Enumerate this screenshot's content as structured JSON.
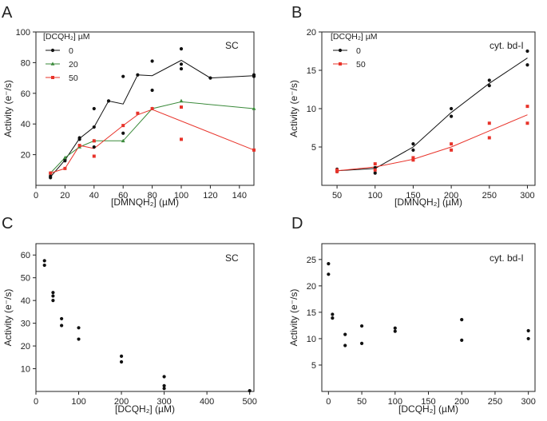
{
  "panels": {
    "A": {
      "letter": "A",
      "tag": "SC"
    },
    "B": {
      "letter": "B",
      "tag": "cyt. bd-I"
    },
    "C": {
      "letter": "C",
      "tag": "SC"
    },
    "D": {
      "letter": "D",
      "tag": "cyt. bd-I"
    }
  },
  "colors": {
    "black": "#111111",
    "green": "#3a8a3a",
    "red": "#e8332a"
  },
  "chart_data": [
    {
      "id": "A",
      "type": "scatter",
      "xlabel": "[DMNQH₂] (µM)",
      "ylabel": "Activity (e⁻/s)",
      "xlim": [
        0,
        150
      ],
      "ylim": [
        0,
        100
      ],
      "xticks": [
        0,
        20,
        40,
        60,
        80,
        100,
        120,
        140
      ],
      "yticks": [
        20,
        40,
        60,
        80,
        100
      ],
      "legend_title": "[DCQH₂] µM",
      "legend_position": "top-left",
      "series": [
        {
          "name": "0",
          "color": "#111111",
          "marker": "circle",
          "points": [
            [
              10,
              5
            ],
            [
              10,
              6
            ],
            [
              20,
              16
            ],
            [
              20,
              17
            ],
            [
              30,
              30
            ],
            [
              30,
              31
            ],
            [
              40,
              25
            ],
            [
              40,
              38
            ],
            [
              40,
              50
            ],
            [
              50,
              55
            ],
            [
              60,
              34
            ],
            [
              60,
              71
            ],
            [
              70,
              72
            ],
            [
              80,
              62
            ],
            [
              80,
              81
            ],
            [
              100,
              76
            ],
            [
              100,
              79
            ],
            [
              100,
              89
            ],
            [
              120,
              70
            ],
            [
              150,
              71
            ],
            [
              150,
              72
            ]
          ],
          "line": [
            [
              10,
              5.5
            ],
            [
              20,
              16.5
            ],
            [
              30,
              30.5
            ],
            [
              40,
              38
            ],
            [
              50,
              55
            ],
            [
              60,
              53
            ],
            [
              70,
              72
            ],
            [
              80,
              71.5
            ],
            [
              100,
              81.5
            ],
            [
              120,
              70
            ],
            [
              150,
              71.5
            ]
          ]
        },
        {
          "name": "20",
          "color": "#3a8a3a",
          "marker": "triangle",
          "points": [
            [
              10,
              8
            ],
            [
              20,
              18
            ],
            [
              30,
              25
            ],
            [
              40,
              29
            ],
            [
              60,
              29
            ],
            [
              80,
              50
            ],
            [
              100,
              55
            ],
            [
              150,
              50
            ]
          ],
          "line": [
            [
              10,
              8
            ],
            [
              20,
              18
            ],
            [
              30,
              25
            ],
            [
              40,
              29
            ],
            [
              60,
              29
            ],
            [
              80,
              50
            ],
            [
              100,
              54.5
            ],
            [
              150,
              50
            ]
          ]
        },
        {
          "name": "50",
          "color": "#e8332a",
          "marker": "square",
          "points": [
            [
              10,
              8
            ],
            [
              20,
              11
            ],
            [
              30,
              26
            ],
            [
              40,
              19
            ],
            [
              40,
              29
            ],
            [
              60,
              39
            ],
            [
              70,
              47
            ],
            [
              80,
              50
            ],
            [
              100,
              51
            ],
            [
              100,
              30
            ],
            [
              150,
              23
            ]
          ],
          "line": [
            [
              10,
              8
            ],
            [
              20,
              11
            ],
            [
              30,
              26
            ],
            [
              40,
              24
            ],
            [
              60,
              39
            ],
            [
              70,
              46
            ],
            [
              80,
              49.5
            ],
            [
              150,
              23
            ]
          ]
        }
      ]
    },
    {
      "id": "B",
      "type": "scatter",
      "xlabel": "[DMNQH₂] (µM)",
      "ylabel": "Activity (e⁻/s)",
      "xlim": [
        30,
        310
      ],
      "ylim": [
        0,
        20
      ],
      "xticks": [
        50,
        100,
        150,
        200,
        250,
        300
      ],
      "yticks": [
        5,
        10,
        15,
        20
      ],
      "legend_title": "[DCQH₂] µM",
      "legend_position": "top-left",
      "series": [
        {
          "name": "0",
          "color": "#111111",
          "marker": "circle",
          "points": [
            [
              50,
              2.1
            ],
            [
              50,
              1.8
            ],
            [
              100,
              2.3
            ],
            [
              100,
              1.6
            ],
            [
              150,
              5.4
            ],
            [
              150,
              4.6
            ],
            [
              200,
              10.0
            ],
            [
              200,
              9.0
            ],
            [
              250,
              13.7
            ],
            [
              250,
              13.0
            ],
            [
              300,
              17.5
            ],
            [
              300,
              15.7
            ]
          ],
          "line": [
            [
              50,
              1.9
            ],
            [
              100,
              2.2
            ],
            [
              150,
              5.0
            ],
            [
              200,
              9.5
            ],
            [
              250,
              13.3
            ],
            [
              300,
              16.6
            ]
          ]
        },
        {
          "name": "50",
          "color": "#e8332a",
          "marker": "square",
          "points": [
            [
              50,
              1.8
            ],
            [
              50,
              2.0
            ],
            [
              100,
              2.8
            ],
            [
              100,
              2.0
            ],
            [
              150,
              3.6
            ],
            [
              150,
              3.3
            ],
            [
              200,
              5.4
            ],
            [
              200,
              4.6
            ],
            [
              250,
              8.1
            ],
            [
              250,
              6.2
            ],
            [
              300,
              10.3
            ],
            [
              300,
              8.1
            ]
          ],
          "line": [
            [
              50,
              1.9
            ],
            [
              100,
              2.4
            ],
            [
              150,
              3.4
            ],
            [
              200,
              5.0
            ],
            [
              250,
              7.1
            ],
            [
              300,
              9.2
            ]
          ]
        }
      ]
    },
    {
      "id": "C",
      "type": "scatter",
      "xlabel": "[DCQH₂] (µM)",
      "ylabel": "Activity (e⁻/s)",
      "xlim": [
        0,
        510
      ],
      "ylim": [
        0,
        65
      ],
      "xticks": [
        0,
        100,
        200,
        300,
        400,
        500
      ],
      "yticks": [
        10,
        20,
        30,
        40,
        50,
        60
      ],
      "series": [
        {
          "name": "",
          "color": "#111111",
          "marker": "circle",
          "points": [
            [
              20,
              57.5
            ],
            [
              20,
              55.5
            ],
            [
              40,
              43.5
            ],
            [
              40,
              42
            ],
            [
              40,
              40
            ],
            [
              60,
              32
            ],
            [
              60,
              29
            ],
            [
              100,
              28
            ],
            [
              100,
              23
            ],
            [
              200,
              15.5
            ],
            [
              200,
              13
            ],
            [
              300,
              6.5
            ],
            [
              300,
              2.5
            ],
            [
              300,
              1.3
            ],
            [
              500,
              0.3
            ]
          ]
        }
      ]
    },
    {
      "id": "D",
      "type": "scatter",
      "xlabel": "[DCQH₂] (µM)",
      "ylabel": "Activity (e⁻/s)",
      "xlim": [
        -10,
        310
      ],
      "ylim": [
        0,
        28
      ],
      "xticks": [
        0,
        50,
        100,
        150,
        200,
        250,
        300
      ],
      "yticks": [
        5,
        10,
        15,
        20,
        25
      ],
      "series": [
        {
          "name": "",
          "color": "#111111",
          "marker": "circle",
          "points": [
            [
              0,
              24.2
            ],
            [
              0,
              22.2
            ],
            [
              6,
              14.6
            ],
            [
              6,
              13.9
            ],
            [
              25,
              10.8
            ],
            [
              25,
              8.7
            ],
            [
              50,
              12.4
            ],
            [
              50,
              9.1
            ],
            [
              100,
              12.0
            ],
            [
              100,
              11.4
            ],
            [
              200,
              13.6
            ],
            [
              200,
              9.7
            ],
            [
              300,
              11.5
            ],
            [
              300,
              10.0
            ]
          ]
        }
      ]
    }
  ]
}
